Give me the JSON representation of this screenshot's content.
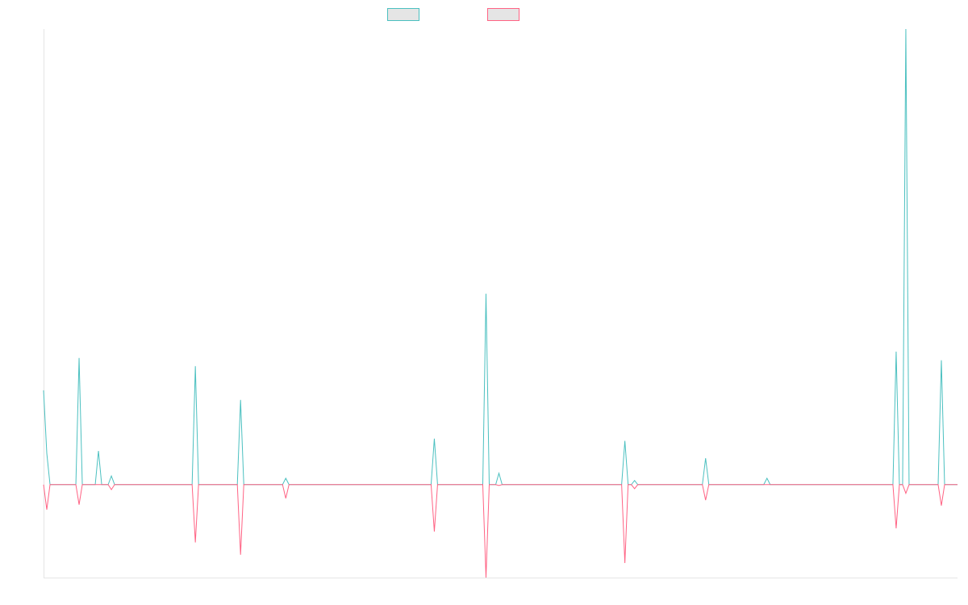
{
  "chart_data": {
    "type": "line",
    "title": "",
    "xlabel": "",
    "ylabel": "",
    "xlim": [
      0,
      283
    ],
    "ylim": [
      -20.4,
      100
    ],
    "grid": false,
    "legend": "top-center",
    "default_value": 0,
    "series": [
      {
        "color": "#4bc0c0",
        "points": [
          [
            0,
            20.7
          ],
          [
            1,
            6.9
          ],
          [
            11,
            27.8
          ],
          [
            17,
            7.4
          ],
          [
            21,
            1.9
          ],
          [
            47,
            26.0
          ],
          [
            61,
            18.6
          ],
          [
            75,
            1.4
          ],
          [
            121,
            10.1
          ],
          [
            137,
            41.9
          ],
          [
            141,
            2.5
          ],
          [
            180,
            9.6
          ],
          [
            183,
            0.9
          ],
          [
            205,
            5.8
          ],
          [
            224,
            1.4
          ],
          [
            264,
            29.2
          ],
          [
            267,
            100
          ],
          [
            278,
            27.3
          ]
        ]
      },
      {
        "color": "#ff6384",
        "points": [
          [
            1,
            -5.5
          ],
          [
            11,
            -4.4
          ],
          [
            21,
            -1.1
          ],
          [
            47,
            -12.7
          ],
          [
            61,
            -15.4
          ],
          [
            75,
            -3.0
          ],
          [
            121,
            -10.3
          ],
          [
            137,
            -20.4
          ],
          [
            141,
            -0.2
          ],
          [
            180,
            -17.2
          ],
          [
            183,
            -0.9
          ],
          [
            205,
            -3.4
          ],
          [
            264,
            -9.6
          ],
          [
            267,
            -1.9
          ],
          [
            278,
            -4.6
          ]
        ]
      }
    ]
  }
}
